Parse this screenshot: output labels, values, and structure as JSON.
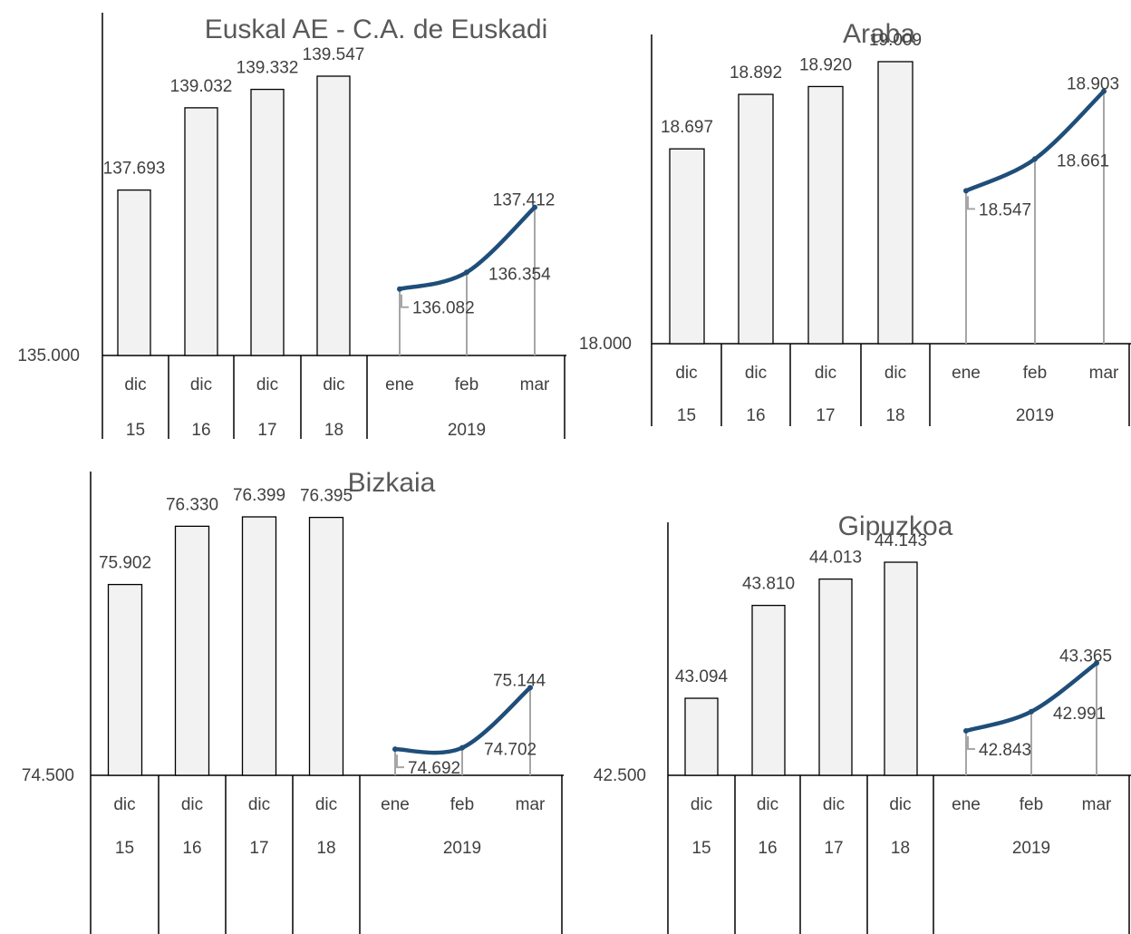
{
  "chart_data": [
    {
      "type": "bar",
      "title": "Euskal AE - C.A. de Euskadi",
      "y_axis_label": "135.000",
      "categories": [
        {
          "top": "dic",
          "bottom": "15"
        },
        {
          "top": "dic",
          "bottom": "16"
        },
        {
          "top": "dic",
          "bottom": "17"
        },
        {
          "top": "dic",
          "bottom": "18"
        }
      ],
      "bar_values": [
        137693,
        139032,
        139332,
        139547
      ],
      "bar_labels": [
        "137.693",
        "139.032",
        "139.332",
        "139.547"
      ],
      "line_categories": [
        "ene",
        "feb",
        "mar"
      ],
      "line_group": "2019",
      "line_values": [
        136082,
        136354,
        137412
      ],
      "line_labels": [
        "136.082",
        "136.354",
        "137.412"
      ],
      "colors": {
        "bar": "#f2f2f2",
        "line": "#1f4e79",
        "drop": "#a6a6a6"
      }
    },
    {
      "type": "bar",
      "title": "Araba",
      "y_axis_label": "18.000",
      "categories": [
        {
          "top": "dic",
          "bottom": "15"
        },
        {
          "top": "dic",
          "bottom": "16"
        },
        {
          "top": "dic",
          "bottom": "17"
        },
        {
          "top": "dic",
          "bottom": "18"
        }
      ],
      "bar_values": [
        18697,
        18892,
        18920,
        19009
      ],
      "bar_labels": [
        "18.697",
        "18.892",
        "18.920",
        "19.009"
      ],
      "line_categories": [
        "ene",
        "feb",
        "mar"
      ],
      "line_group": "2019",
      "line_values": [
        18547,
        18661,
        18903
      ],
      "line_labels": [
        "18.547",
        "18.661",
        "18.903"
      ],
      "colors": {
        "bar": "#f2f2f2",
        "line": "#1f4e79",
        "drop": "#a6a6a6"
      }
    },
    {
      "type": "bar",
      "title": "Bizkaia",
      "y_axis_label": "74.500",
      "categories": [
        {
          "top": "dic",
          "bottom": "15"
        },
        {
          "top": "dic",
          "bottom": "16"
        },
        {
          "top": "dic",
          "bottom": "17"
        },
        {
          "top": "dic",
          "bottom": "18"
        }
      ],
      "bar_values": [
        75902,
        76330,
        76399,
        76395
      ],
      "bar_labels": [
        "75.902",
        "76.330",
        "76.399",
        "76.395"
      ],
      "line_categories": [
        "ene",
        "feb",
        "mar"
      ],
      "line_group": "2019",
      "line_values": [
        74692,
        74702,
        75144
      ],
      "line_labels": [
        "74.692",
        "74.702",
        "75.144"
      ],
      "colors": {
        "bar": "#f2f2f2",
        "line": "#1f4e79",
        "drop": "#a6a6a6"
      }
    },
    {
      "type": "bar",
      "title": "Gipuzkoa",
      "y_axis_label": "42.500",
      "categories": [
        {
          "top": "dic",
          "bottom": "15"
        },
        {
          "top": "dic",
          "bottom": "16"
        },
        {
          "top": "dic",
          "bottom": "17"
        },
        {
          "top": "dic",
          "bottom": "18"
        }
      ],
      "bar_values": [
        43094,
        43810,
        44013,
        44143
      ],
      "bar_labels": [
        "43.094",
        "43.810",
        "44.013",
        "44.143"
      ],
      "line_categories": [
        "ene",
        "feb",
        "mar"
      ],
      "line_group": "2019",
      "line_values": [
        42843,
        42991,
        43365
      ],
      "line_labels": [
        "42.843",
        "42.991",
        "43.365"
      ],
      "colors": {
        "bar": "#f2f2f2",
        "line": "#1f4e79",
        "drop": "#a6a6a6"
      }
    }
  ]
}
